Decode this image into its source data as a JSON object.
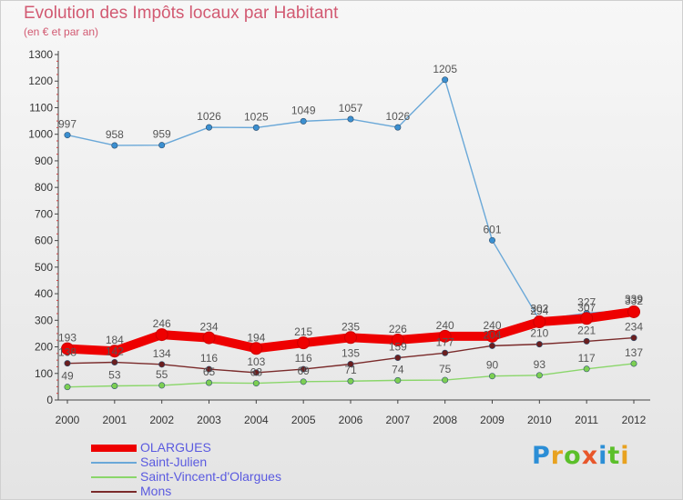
{
  "title": "Evolution des Impôts locaux par Habitant",
  "subtitle": "(en € et par an)",
  "logo": {
    "text": "Proxiti",
    "letter_colors": [
      "#2b8ed6",
      "#e8a220",
      "#5bbf2a",
      "#e8562a",
      "#2b8ed6",
      "#5bbf2a",
      "#e8a220"
    ]
  },
  "chart_data": {
    "type": "line",
    "title": "Evolution des Impôts locaux par Habitant",
    "subtitle": "(en € et par an)",
    "xlabel": "",
    "ylabel": "",
    "categories": [
      "2000",
      "2001",
      "2002",
      "2003",
      "2004",
      "2005",
      "2006",
      "2007",
      "2008",
      "2009",
      "2010",
      "2011",
      "2012"
    ],
    "ylim": [
      0,
      1300
    ],
    "yticks": [
      0,
      100,
      200,
      300,
      400,
      500,
      600,
      700,
      800,
      900,
      1000,
      1100,
      1200,
      1300
    ],
    "grid": false,
    "legend_position": "bottom-left",
    "series": [
      {
        "name": "OLARGUES",
        "color": "#ee0000",
        "marker": "#ee0000",
        "values": [
          193,
          184,
          246,
          234,
          194,
          215,
          235,
          226,
          240,
          240,
          294,
          307,
          332
        ]
      },
      {
        "name": "Saint-Julien",
        "color": "#6aa8d8",
        "marker": "#3b8fd0",
        "values": [
          997,
          958,
          959,
          1026,
          1025,
          1049,
          1057,
          1026,
          1205,
          601,
          302,
          327,
          339
        ]
      },
      {
        "name": "Saint-Vincent-d'Olargues",
        "color": "#8ad66a",
        "marker": "#7ccf52",
        "values": [
          49,
          53,
          55,
          65,
          63,
          69,
          71,
          74,
          75,
          90,
          93,
          117,
          137
        ]
      },
      {
        "name": "Mons",
        "color": "#7a2a2a",
        "marker": "#6b1e1e",
        "values": [
          138,
          142,
          134,
          116,
          103,
          116,
          135,
          159,
          177,
          204,
          210,
          221,
          234
        ]
      }
    ]
  }
}
